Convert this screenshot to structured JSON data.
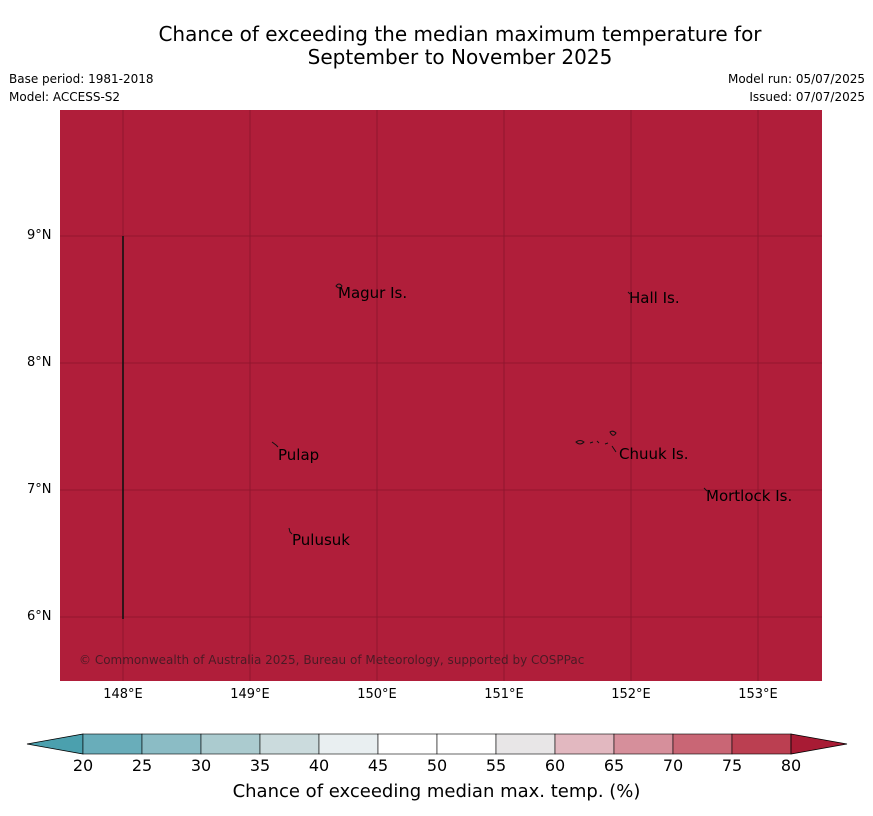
{
  "title_line1": "Chance of exceeding the median maximum temperature for",
  "title_line2": "September to November 2025",
  "meta": {
    "base_period": "Base period: 1981-2018",
    "model": "Model: ACCESS-S2",
    "model_run": "Model run: 05/07/2025",
    "issued": "Issued: 07/07/2025"
  },
  "map": {
    "fill_color": "#b01e3a",
    "lat_labels": [
      "9°N",
      "8°N",
      "7°N",
      "6°N"
    ],
    "lon_labels": [
      "148°E",
      "149°E",
      "150°E",
      "151°E",
      "152°E",
      "153°E"
    ],
    "places": [
      "Magur Is.",
      "Hall Is.",
      "Pulap",
      "Chuuk Is.",
      "Mortlock Is.",
      "Pulusuk"
    ],
    "copyright": "© Commonwealth of Australia 2025, Bureau of Meteorology, supported by COSPPac"
  },
  "colorbar": {
    "ticks": [
      "20",
      "25",
      "30",
      "35",
      "40",
      "45",
      "50",
      "55",
      "60",
      "65",
      "70",
      "75",
      "80"
    ],
    "colors": [
      "#4ba0ae",
      "#69adba",
      "#8bbcc5",
      "#abcbcf",
      "#cbdbdd",
      "#e9eff1",
      "#ffffff",
      "#ffffff",
      "#e8e6e7",
      "#e2b8c0",
      "#d68f9b",
      "#c96675",
      "#bb3f51",
      "#a81b34"
    ],
    "title": "Chance of exceeding median max. temp. (%)"
  }
}
